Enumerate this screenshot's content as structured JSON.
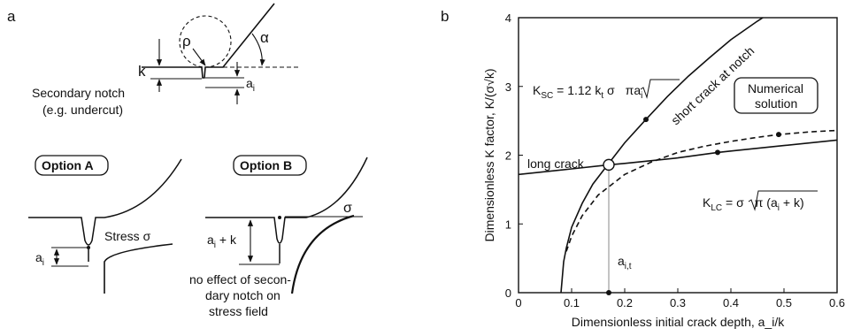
{
  "panel_a": {
    "label": "a",
    "rho": "ρ",
    "alpha": "α",
    "k": "k",
    "ai": "a",
    "ai_sub": "i",
    "secondary_line1": "Secondary notch",
    "secondary_line2": "(e.g. undercut)",
    "option_a": "Option A",
    "option_b": "Option B",
    "stress": "Stress σ",
    "sigma": "σ",
    "ai_a": "a",
    "ai_a_sub": "i",
    "ai_k_a": "a",
    "ai_k_sub": "i",
    "ai_k_rest": " + k",
    "no_effect_1": "no effect of secon-",
    "no_effect_2": "dary notch on",
    "no_effect_3": "stress field"
  },
  "panel_b": {
    "label": "b",
    "ksc_label": "K",
    "ksc_sub": "SC",
    "ksc_rest": " = 1.12 k",
    "ksc_t": "t",
    "ksc_sigma": " σ",
    "ksc_root": "πa",
    "ksc_root_sub": "i",
    "short_crack": "short crack at notch",
    "numerical_1": "Numerical",
    "numerical_2": "solution",
    "long_crack": "long crack",
    "klc_label": "K",
    "klc_sub": "LC",
    "klc_rest": " = σ",
    "klc_root": "π (a",
    "klc_root_sub": "i",
    "klc_root_end": " + k)",
    "ait_label": "a",
    "ait_sub": "i,t"
  },
  "chart_data": {
    "type": "line",
    "xlabel": "Dimensionless initial crack depth, a_i/k",
    "ylabel": "Dimensionless K factor, K/(σ√k)",
    "xlim": [
      0,
      0.6
    ],
    "ylim": [
      0,
      4
    ],
    "x_ticks": [
      "0",
      "0.1",
      "0.2",
      "0.3",
      "0.4",
      "0.5",
      "0.6"
    ],
    "y_ticks": [
      "0",
      "1",
      "2",
      "3",
      "4"
    ],
    "series": [
      {
        "name": "short crack at notch",
        "style": "solid",
        "x": [
          0.08,
          0.085,
          0.09,
          0.1,
          0.12,
          0.14,
          0.17,
          0.2,
          0.24,
          0.28,
          0.32,
          0.36,
          0.4,
          0.45,
          0.5
        ],
        "y": [
          0.0,
          0.45,
          0.65,
          0.95,
          1.3,
          1.58,
          1.88,
          2.18,
          2.52,
          2.85,
          3.15,
          3.42,
          3.68,
          3.95,
          4.2
        ]
      },
      {
        "name": "long crack",
        "style": "solid",
        "x": [
          0.0,
          0.1,
          0.17,
          0.2,
          0.3,
          0.375,
          0.4,
          0.5,
          0.6
        ],
        "y": [
          1.72,
          1.8,
          1.86,
          1.88,
          1.96,
          2.04,
          2.06,
          2.14,
          2.22
        ]
      },
      {
        "name": "Numerical solution",
        "style": "dashed",
        "x": [
          0.09,
          0.1,
          0.12,
          0.15,
          0.2,
          0.25,
          0.3,
          0.35,
          0.4,
          0.45,
          0.49,
          0.55,
          0.6
        ],
        "y": [
          0.6,
          0.82,
          1.12,
          1.42,
          1.72,
          1.9,
          2.04,
          2.13,
          2.2,
          2.26,
          2.3,
          2.34,
          2.36
        ]
      }
    ],
    "points": [
      {
        "x": 0.24,
        "y": 2.52,
        "style": "dot"
      },
      {
        "x": 0.375,
        "y": 2.04,
        "style": "dot"
      },
      {
        "x": 0.49,
        "y": 2.3,
        "style": "dot"
      },
      {
        "x": 0.17,
        "y": 1.86,
        "style": "open-circle"
      },
      {
        "x": 0.17,
        "y": 0.0,
        "style": "dot"
      }
    ]
  }
}
